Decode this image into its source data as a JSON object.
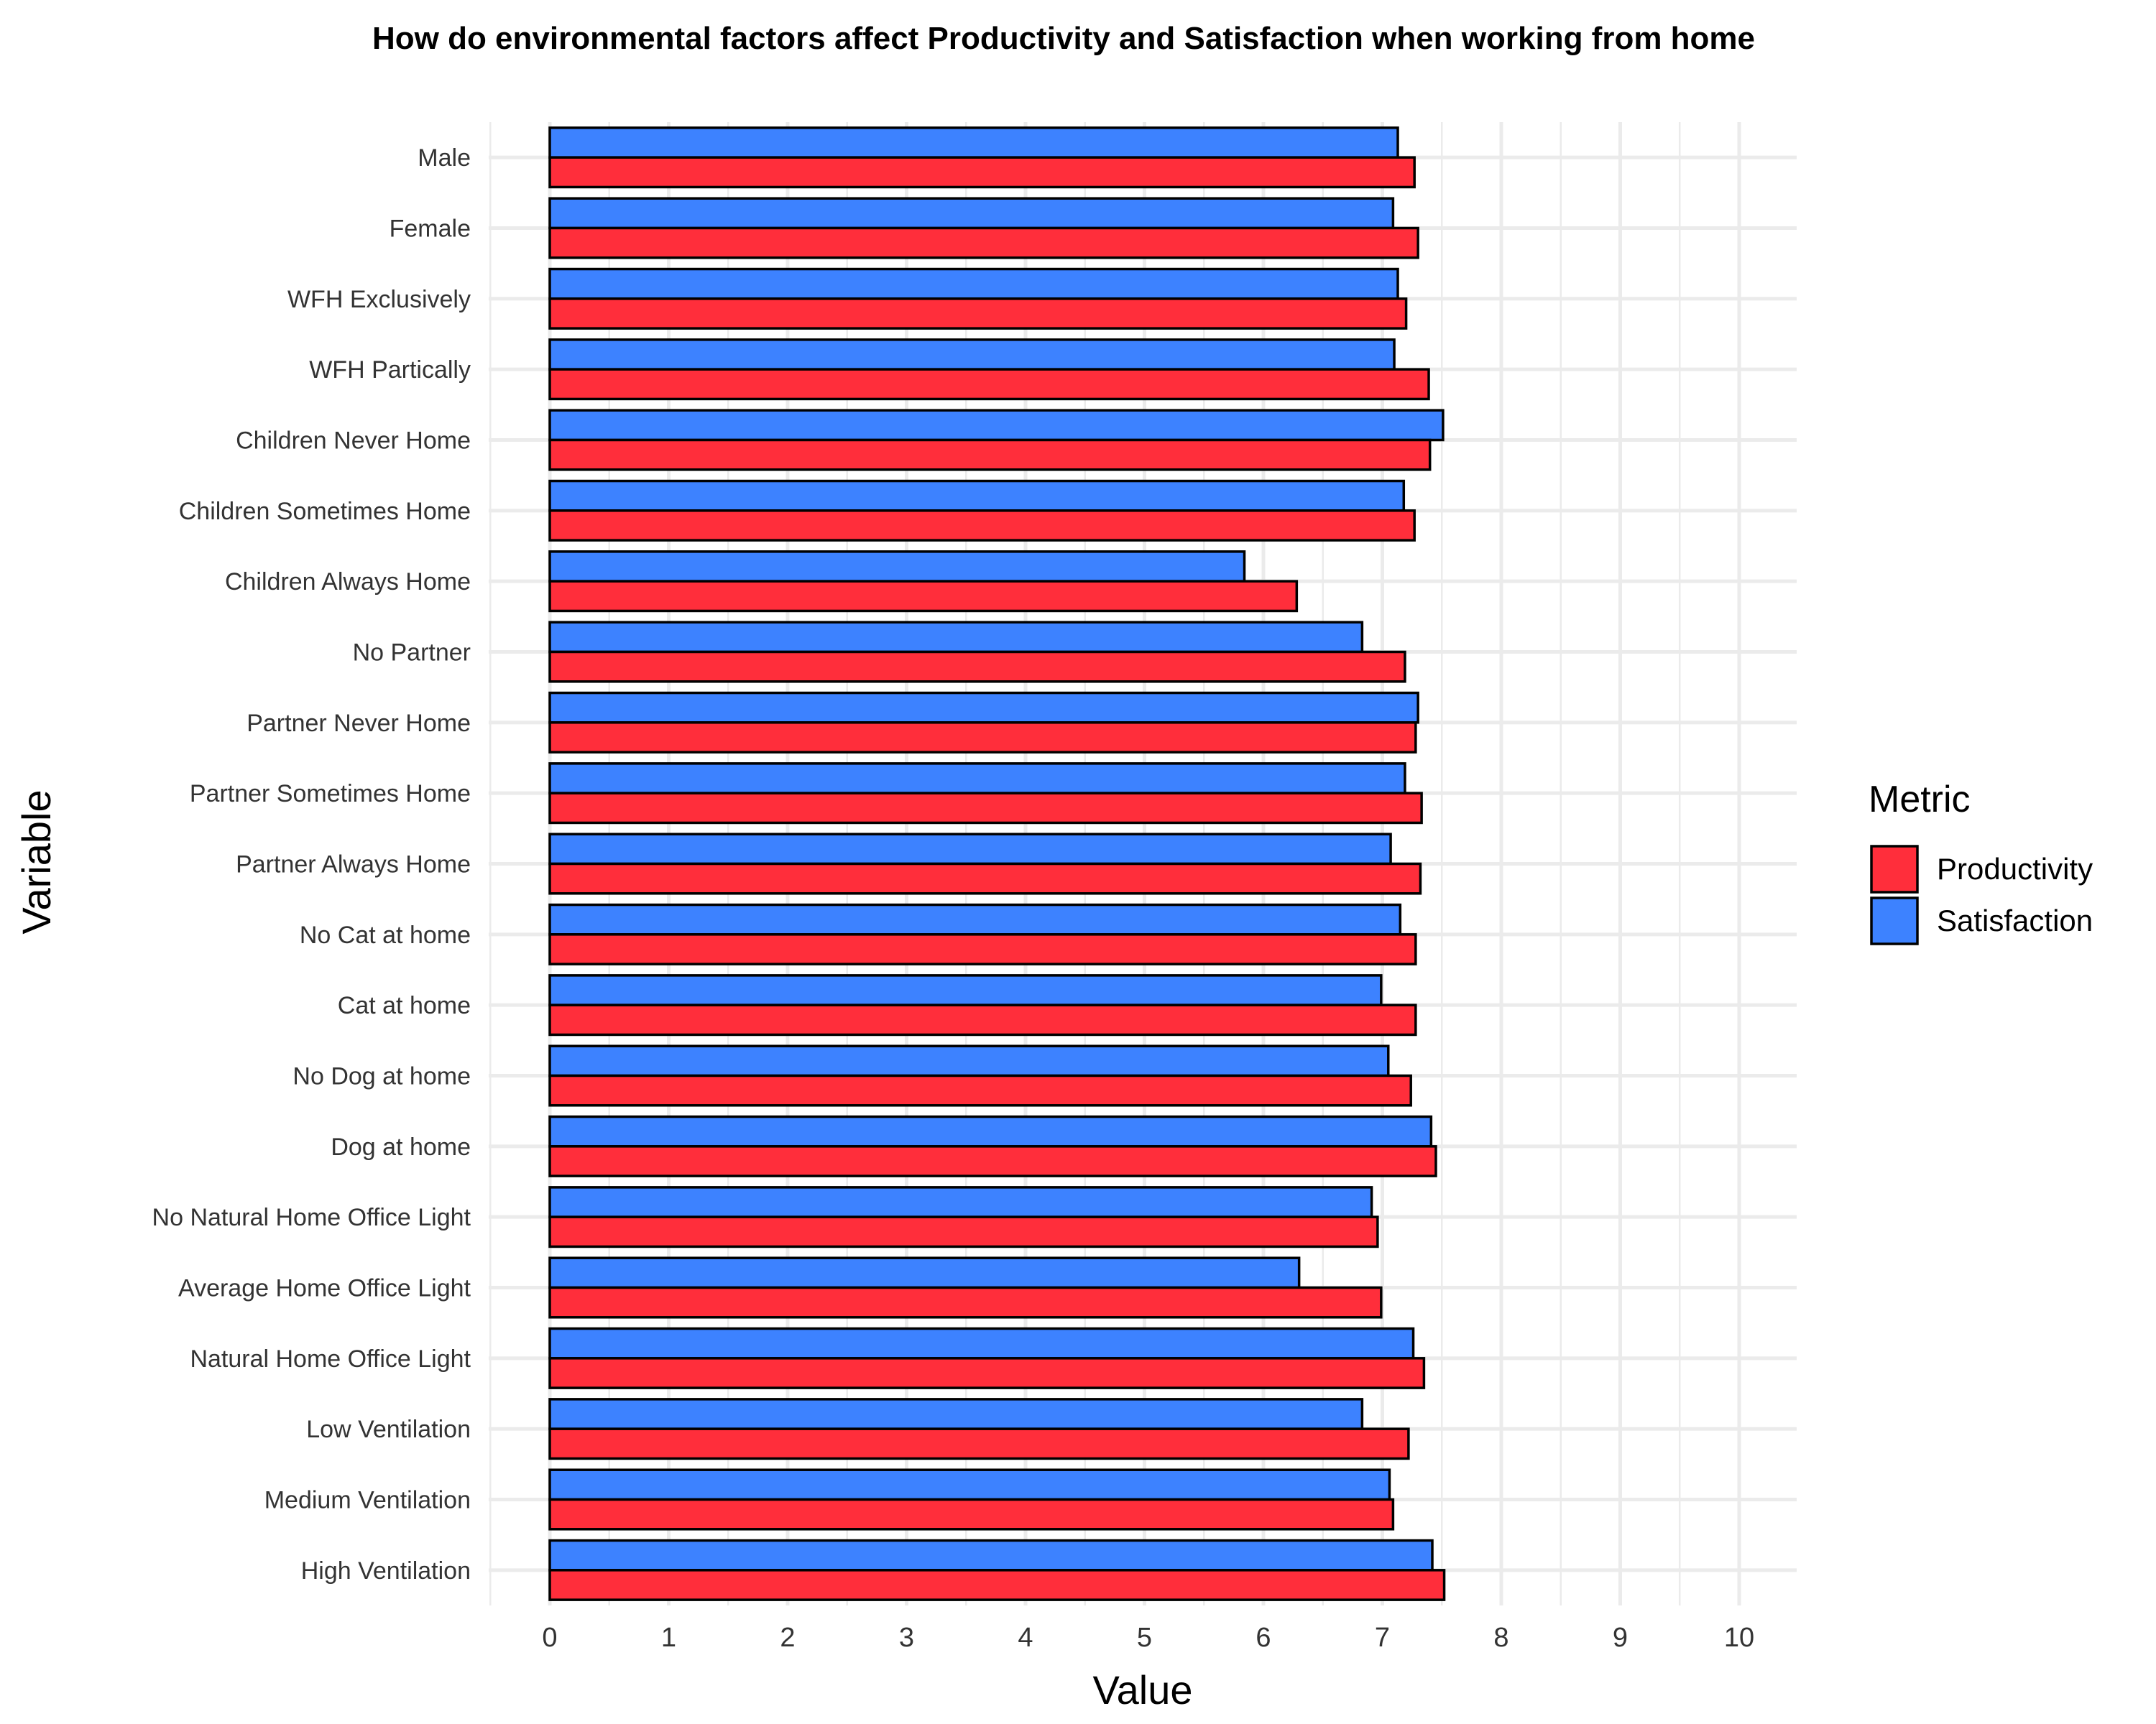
{
  "chart_data": {
    "type": "bar",
    "orientation": "horizontal",
    "title": "How do environmental factors affect Productivity and Satisfaction when working from home",
    "xlabel": "Value",
    "ylabel": "Variable",
    "xlim": [
      0,
      10
    ],
    "xticks": [
      0,
      1,
      2,
      3,
      4,
      5,
      6,
      7,
      8,
      9,
      10
    ],
    "grid": true,
    "legend": {
      "title": "Metric",
      "position": "right"
    },
    "categories": [
      "Male",
      "Female",
      "WFH Exclusively",
      "WFH Partically",
      "Children Never Home",
      "Children Sometimes Home",
      "Children Always Home",
      "No Partner",
      "Partner Never Home",
      "Partner Sometimes Home",
      "Partner Always Home",
      "No Cat at home",
      "Cat at home",
      "No Dog at home",
      "Dog at home",
      "No Natural Home Office Light",
      "Average Home Office Light",
      "Natural Home Office Light",
      "Low Ventilation",
      "Medium Ventilation",
      "High Ventilation"
    ],
    "series": [
      {
        "name": "Productivity",
        "color": "#FF2E3B",
        "values": [
          7.27,
          7.3,
          7.2,
          7.39,
          7.4,
          7.27,
          6.28,
          7.19,
          7.28,
          7.33,
          7.32,
          7.28,
          7.28,
          7.24,
          7.45,
          6.96,
          6.99,
          7.35,
          7.22,
          7.09,
          7.52
        ]
      },
      {
        "name": "Satisfaction",
        "color": "#3D82FF",
        "values": [
          7.13,
          7.09,
          7.13,
          7.1,
          7.51,
          7.18,
          5.84,
          6.83,
          7.3,
          7.19,
          7.07,
          7.15,
          6.99,
          7.05,
          7.41,
          6.91,
          6.3,
          7.26,
          6.83,
          7.06,
          7.42
        ]
      }
    ]
  }
}
